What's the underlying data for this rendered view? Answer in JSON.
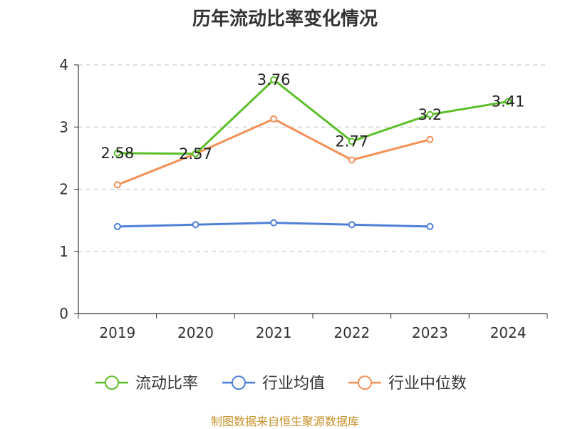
{
  "chart_data": {
    "type": "line",
    "title": "历年流动比率变化情况",
    "categories": [
      "2019",
      "2020",
      "2021",
      "2022",
      "2023",
      "2024"
    ],
    "ylim": [
      0,
      4
    ],
    "yticks": [
      0,
      1,
      2,
      3,
      4
    ],
    "grid": true,
    "legend_position": "bottom",
    "series": [
      {
        "name": "流动比率",
        "color": "#5cbf2a",
        "values": [
          2.58,
          2.57,
          3.76,
          2.77,
          3.2,
          3.41
        ],
        "labels": [
          "2.58",
          "2.57",
          "3.76",
          "2.77",
          "3.2",
          "3.41"
        ]
      },
      {
        "name": "行业均值",
        "color": "#4f7fd6",
        "values": [
          1.4,
          1.43,
          1.46,
          1.43,
          1.4,
          null
        ]
      },
      {
        "name": "行业中位数",
        "color": "#f39056",
        "values": [
          2.07,
          2.57,
          3.13,
          2.47,
          2.8,
          null
        ]
      }
    ]
  },
  "source_note": "制图数据来自恒生聚源数据库"
}
